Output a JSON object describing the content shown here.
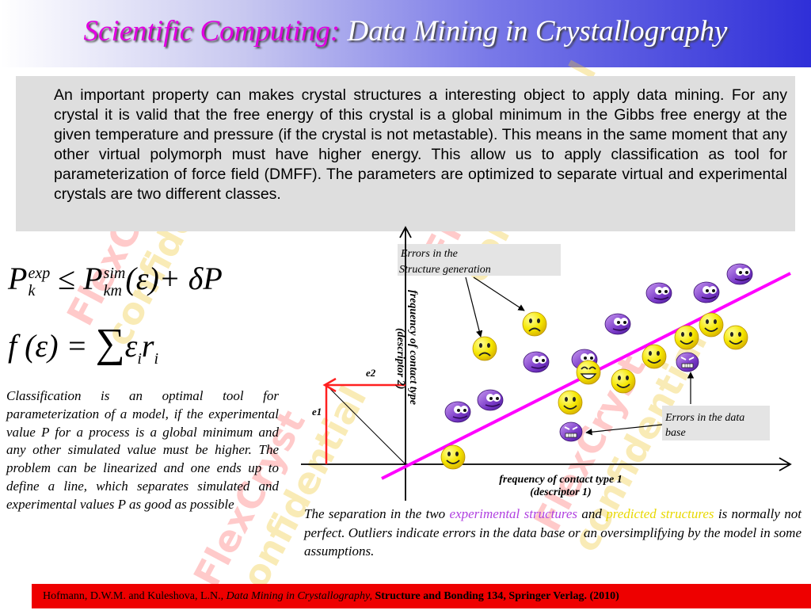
{
  "title": {
    "part1": "Scientific Computing:",
    "part2": "Data Mining in Crystallography"
  },
  "watermark": {
    "word1": "FlexCryst",
    "word2": "confidential"
  },
  "intro": "An important property can makes crystal structures a interesting object to apply data mining. For any crystal it is valid that the free energy of this crystal is a global minimum in the Gibbs free energy at the given temperature and pressure (if the crystal is not metastable). This means in the same moment that any other virtual polymorph must have higher energy. This allow us to apply classification as tool for parameterization of force field (DMFF). The parameters are optimized to separate virtual and experimental crystals are two different classes.",
  "formula1": {
    "p": "P",
    "sup1": "exp",
    "sub1": "k",
    "leq": "≤",
    "p2": "P",
    "sup2": "sim",
    "sub2": "km",
    "arg": "(ε)",
    "plus": "+ δP"
  },
  "formula2": {
    "lhs": "f (ε) =",
    "sum": "∑",
    "eps": "ε",
    "sub_i": "i",
    "r": "r",
    "sub_i2": "i"
  },
  "classification_text": "Classification is an optimal tool for parameterization of a model, if the experimental value P for a process is a global minimum and any other simulated value must be higher. The problem can be linearized and one ends up to define a line, which separates simulated and experimental values P as good as possible",
  "diagram": {
    "label_errors_generation_1": "Errors in the",
    "label_errors_generation_2": "Structure generation",
    "label_errors_database_1": "Errors in the data",
    "label_errors_database_2": "base",
    "y_axis_1": "frequency of contact type",
    "y_axis_2": "(descriptor 2)",
    "x_axis_1": "frequency of contact type 1",
    "x_axis_2": "(descriptor 1)",
    "e1": "e1",
    "e2": "e2"
  },
  "separation": {
    "t1": "The separation in the two ",
    "exp": "experimental structures",
    "t2": " and ",
    "pred": "predicted structures",
    "t3": " is normally not perfect. Outliers indicate errors in the data base or an oversimplifying by the model in some assumptions."
  },
  "footer": {
    "authors": "Hofmann, D.W.M. and Kuleshova, L.N., ",
    "book": "Data Mining in Crystallography,",
    "series": " Structure and Bonding 134, Springer Verlag. (2010)"
  },
  "colors": {
    "separator_line": "#ff00ff",
    "e_arrow": "#ff2020",
    "purple_face": "#8844cc",
    "yellow_face": "#f5e600",
    "footer": "#ee0000"
  }
}
